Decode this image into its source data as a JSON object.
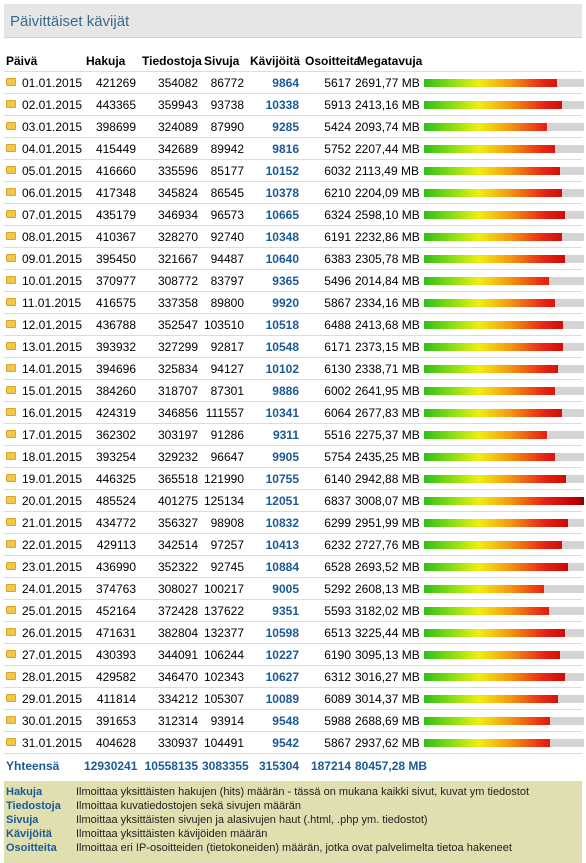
{
  "title": "Päivittäiset kävijät",
  "columns": [
    "Päivä",
    "Hakuja",
    "Tiedostoja",
    "Sivuja",
    "Kävijöitä",
    "Osoitteita",
    "Megatavuja"
  ],
  "rows": [
    {
      "date": "01.01.2015",
      "hakuja": "421269",
      "tiedostoja": "354082",
      "sivuja": "86772",
      "kavijoita": "9864",
      "osoitteita": "5617",
      "mb": "2691,77 MB",
      "bar": 0.83
    },
    {
      "date": "02.01.2015",
      "hakuja": "443365",
      "tiedostoja": "359943",
      "sivuja": "93738",
      "kavijoita": "10338",
      "osoitteita": "5913",
      "mb": "2413,16 MB",
      "bar": 0.86
    },
    {
      "date": "03.01.2015",
      "hakuja": "398699",
      "tiedostoja": "324089",
      "sivuja": "87990",
      "kavijoita": "9285",
      "osoitteita": "5424",
      "mb": "2093,74 MB",
      "bar": 0.77
    },
    {
      "date": "04.01.2015",
      "hakuja": "415449",
      "tiedostoja": "342689",
      "sivuja": "89942",
      "kavijoita": "9816",
      "osoitteita": "5752",
      "mb": "2207,44 MB",
      "bar": 0.82
    },
    {
      "date": "05.01.2015",
      "hakuja": "416660",
      "tiedostoja": "335596",
      "sivuja": "85177",
      "kavijoita": "10152",
      "osoitteita": "6032",
      "mb": "2113,49 MB",
      "bar": 0.85
    },
    {
      "date": "06.01.2015",
      "hakuja": "417348",
      "tiedostoja": "345824",
      "sivuja": "86545",
      "kavijoita": "10378",
      "osoitteita": "6210",
      "mb": "2204,09 MB",
      "bar": 0.86
    },
    {
      "date": "07.01.2015",
      "hakuja": "435179",
      "tiedostoja": "346934",
      "sivuja": "96573",
      "kavijoita": "10665",
      "osoitteita": "6324",
      "mb": "2598,10 MB",
      "bar": 0.88
    },
    {
      "date": "08.01.2015",
      "hakuja": "410367",
      "tiedostoja": "328270",
      "sivuja": "92740",
      "kavijoita": "10348",
      "osoitteita": "6191",
      "mb": "2232,86 MB",
      "bar": 0.86
    },
    {
      "date": "09.01.2015",
      "hakuja": "395450",
      "tiedostoja": "321667",
      "sivuja": "94487",
      "kavijoita": "10640",
      "osoitteita": "6383",
      "mb": "2305,78 MB",
      "bar": 0.88
    },
    {
      "date": "10.01.2015",
      "hakuja": "370977",
      "tiedostoja": "308772",
      "sivuja": "83797",
      "kavijoita": "9365",
      "osoitteita": "5496",
      "mb": "2014,84 MB",
      "bar": 0.78
    },
    {
      "date": "11.01.2015",
      "hakuja": "416575",
      "tiedostoja": "337358",
      "sivuja": "89800",
      "kavijoita": "9920",
      "osoitteita": "5867",
      "mb": "2334,16 MB",
      "bar": 0.82
    },
    {
      "date": "12.01.2015",
      "hakuja": "436788",
      "tiedostoja": "352547",
      "sivuja": "103510",
      "kavijoita": "10518",
      "osoitteita": "6488",
      "mb": "2413,68 MB",
      "bar": 0.87
    },
    {
      "date": "13.01.2015",
      "hakuja": "393932",
      "tiedostoja": "327299",
      "sivuja": "92817",
      "kavijoita": "10548",
      "osoitteita": "6171",
      "mb": "2373,15 MB",
      "bar": 0.87
    },
    {
      "date": "14.01.2015",
      "hakuja": "394696",
      "tiedostoja": "325834",
      "sivuja": "94127",
      "kavijoita": "10102",
      "osoitteita": "6130",
      "mb": "2338,71 MB",
      "bar": 0.84
    },
    {
      "date": "15.01.2015",
      "hakuja": "384260",
      "tiedostoja": "318707",
      "sivuja": "87301",
      "kavijoita": "9886",
      "osoitteita": "6002",
      "mb": "2641,95 MB",
      "bar": 0.82
    },
    {
      "date": "16.01.2015",
      "hakuja": "424319",
      "tiedostoja": "346856",
      "sivuja": "111557",
      "kavijoita": "10341",
      "osoitteita": "6064",
      "mb": "2677,83 MB",
      "bar": 0.86
    },
    {
      "date": "17.01.2015",
      "hakuja": "362302",
      "tiedostoja": "303197",
      "sivuja": "91286",
      "kavijoita": "9311",
      "osoitteita": "5516",
      "mb": "2275,37 MB",
      "bar": 0.77
    },
    {
      "date": "18.01.2015",
      "hakuja": "393254",
      "tiedostoja": "329232",
      "sivuja": "96647",
      "kavijoita": "9905",
      "osoitteita": "5754",
      "mb": "2435,25 MB",
      "bar": 0.82
    },
    {
      "date": "19.01.2015",
      "hakuja": "446325",
      "tiedostoja": "365518",
      "sivuja": "121990",
      "kavijoita": "10755",
      "osoitteita": "6140",
      "mb": "2942,88 MB",
      "bar": 0.89
    },
    {
      "date": "20.01.2015",
      "hakuja": "485524",
      "tiedostoja": "401275",
      "sivuja": "125134",
      "kavijoita": "12051",
      "osoitteita": "6837",
      "mb": "3008,07 MB",
      "bar": 1.0
    },
    {
      "date": "21.01.2015",
      "hakuja": "434772",
      "tiedostoja": "356327",
      "sivuja": "98908",
      "kavijoita": "10832",
      "osoitteita": "6299",
      "mb": "2951,99 MB",
      "bar": 0.9
    },
    {
      "date": "22.01.2015",
      "hakuja": "429113",
      "tiedostoja": "342514",
      "sivuja": "97257",
      "kavijoita": "10413",
      "osoitteita": "6232",
      "mb": "2727,76 MB",
      "bar": 0.86
    },
    {
      "date": "23.01.2015",
      "hakuja": "436990",
      "tiedostoja": "352322",
      "sivuja": "92745",
      "kavijoita": "10884",
      "osoitteita": "6528",
      "mb": "2693,52 MB",
      "bar": 0.9
    },
    {
      "date": "24.01.2015",
      "hakuja": "374763",
      "tiedostoja": "308027",
      "sivuja": "100217",
      "kavijoita": "9005",
      "osoitteita": "5292",
      "mb": "2608,13 MB",
      "bar": 0.75
    },
    {
      "date": "25.01.2015",
      "hakuja": "452164",
      "tiedostoja": "372428",
      "sivuja": "137622",
      "kavijoita": "9351",
      "osoitteita": "5593",
      "mb": "3182,02 MB",
      "bar": 0.78
    },
    {
      "date": "26.01.2015",
      "hakuja": "471631",
      "tiedostoja": "382804",
      "sivuja": "132377",
      "kavijoita": "10598",
      "osoitteita": "6513",
      "mb": "3225,44 MB",
      "bar": 0.88
    },
    {
      "date": "27.01.2015",
      "hakuja": "430393",
      "tiedostoja": "344091",
      "sivuja": "106244",
      "kavijoita": "10227",
      "osoitteita": "6190",
      "mb": "3095,13 MB",
      "bar": 0.85
    },
    {
      "date": "28.01.2015",
      "hakuja": "429582",
      "tiedostoja": "346470",
      "sivuja": "102343",
      "kavijoita": "10627",
      "osoitteita": "6312",
      "mb": "3016,27 MB",
      "bar": 0.88
    },
    {
      "date": "29.01.2015",
      "hakuja": "411814",
      "tiedostoja": "334212",
      "sivuja": "105307",
      "kavijoita": "10089",
      "osoitteita": "6089",
      "mb": "3014,37 MB",
      "bar": 0.84
    },
    {
      "date": "30.01.2015",
      "hakuja": "391653",
      "tiedostoja": "312314",
      "sivuja": "93914",
      "kavijoita": "9548",
      "osoitteita": "5988",
      "mb": "2688,69 MB",
      "bar": 0.79
    },
    {
      "date": "31.01.2015",
      "hakuja": "404628",
      "tiedostoja": "330937",
      "sivuja": "104491",
      "kavijoita": "9542",
      "osoitteita": "5867",
      "mb": "2937,62 MB",
      "bar": 0.79
    }
  ],
  "totals": {
    "label": "Yhteensä",
    "hakuja": "12930241",
    "tiedostoja": "10558135",
    "sivuja": "3083355",
    "kavijoita": "315304",
    "osoitteita": "187214",
    "mb": "80457,28 MB"
  },
  "legend": [
    {
      "term": "Hakuja",
      "desc": "Ilmoittaa yksittäisten hakujen (hits) määrän - tässä on mukana kaikki sivut, kuvat ym tiedostot"
    },
    {
      "term": "Tiedostoja",
      "desc": "Ilmoittaa kuvatiedostojen sekä sivujen määrän"
    },
    {
      "term": "Sivuja",
      "desc": "Ilmoittaa yksittäisten sivujen ja alasivujen haut (.html, .php ym. tiedostot)"
    },
    {
      "term": "Kävijöitä",
      "desc": "Ilmoittaa yksittäisten kävijöiden määrän"
    },
    {
      "term": "Osoitteita",
      "desc": "Ilmoittaa eri IP-osoitteiden (tietokoneiden) määrän, jotka ovat palvelimelta tietoa hakeneet"
    }
  ],
  "colors": {
    "accent": "#1a5a96",
    "bar_track": "#d4d4d4",
    "legend_bg": "#e0dfb0"
  }
}
